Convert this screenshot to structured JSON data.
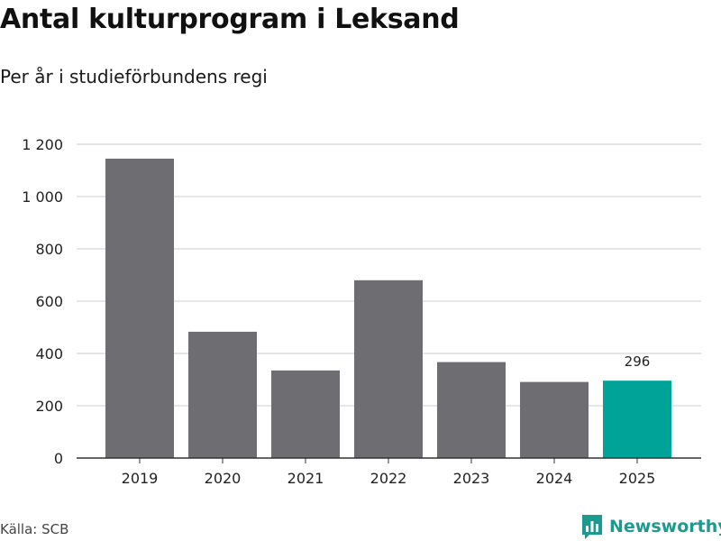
{
  "header": {
    "title": "Antal kulturprogram i Leksand",
    "subtitle": "Per år i studieförbundens regi"
  },
  "footer": {
    "source": "Källa: SCB",
    "brand": "Newsworthy"
  },
  "colors": {
    "bar": "#6e6d72",
    "highlight": "#00a398",
    "grid": "#dddddd",
    "axis": "#333333"
  },
  "chart_data": {
    "type": "bar",
    "title": "Antal kulturprogram i Leksand",
    "subtitle": "Per år i studieförbundens regi",
    "categories": [
      "2019",
      "2020",
      "2021",
      "2022",
      "2023",
      "2024",
      "2025"
    ],
    "values": [
      1145,
      483,
      335,
      680,
      367,
      291,
      296
    ],
    "highlight_index": 6,
    "data_labels": [
      {
        "index": 6,
        "text": "296"
      }
    ],
    "ylim": [
      0,
      1200
    ],
    "yticks": [
      0,
      200,
      400,
      600,
      800,
      1000,
      1200
    ],
    "ytick_labels": [
      "0",
      "200",
      "400",
      "600",
      "800",
      "1 000",
      "1 200"
    ],
    "xlabel": "",
    "ylabel": "",
    "grid": true
  }
}
